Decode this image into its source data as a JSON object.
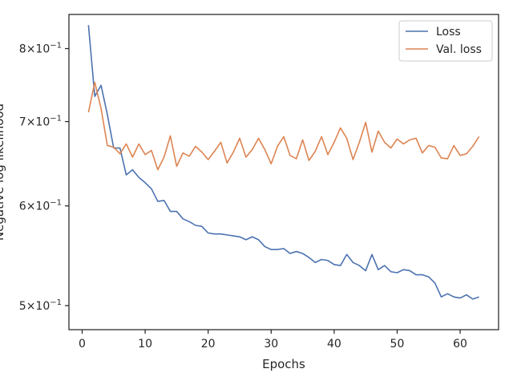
{
  "chart_data": {
    "type": "line",
    "xlabel": "Epochs",
    "ylabel": "Negative log likelihood",
    "yscale": "log",
    "xlim": [
      -2.1,
      66.1
    ],
    "ylim": [
      0.4785,
      0.8515
    ],
    "xticks": [
      0,
      10,
      20,
      30,
      40,
      50,
      60
    ],
    "xtick_labels": [
      "0",
      "10",
      "20",
      "30",
      "40",
      "50",
      "60"
    ],
    "yticks": [
      0.5,
      0.6,
      0.7,
      0.8
    ],
    "ytick_labels": [
      {
        "base": "5",
        "mid": "×10",
        "exp": "−1"
      },
      {
        "base": "6",
        "mid": "×10",
        "exp": "−1"
      },
      {
        "base": "7",
        "mid": "×10",
        "exp": "−1"
      },
      {
        "base": "8",
        "mid": "×10",
        "exp": "−1"
      }
    ],
    "grid": false,
    "legend_position": "upper right",
    "x": [
      1,
      2,
      3,
      4,
      5,
      6,
      7,
      8,
      9,
      10,
      11,
      12,
      13,
      14,
      15,
      16,
      17,
      18,
      19,
      20,
      21,
      22,
      23,
      24,
      25,
      26,
      27,
      28,
      29,
      30,
      31,
      32,
      33,
      34,
      35,
      36,
      37,
      38,
      39,
      40,
      41,
      42,
      43,
      44,
      45,
      46,
      47,
      48,
      49,
      50,
      51,
      52,
      53,
      54,
      55,
      56,
      57,
      58,
      59,
      60,
      61,
      62,
      63
    ],
    "series": [
      {
        "name": "Loss",
        "color": "#4c72b0",
        "values": [
          0.835,
          0.733,
          0.748,
          0.709,
          0.667,
          0.667,
          0.635,
          0.641,
          0.632,
          0.626,
          0.619,
          0.605,
          0.606,
          0.594,
          0.594,
          0.586,
          0.583,
          0.579,
          0.578,
          0.571,
          0.57,
          0.57,
          0.569,
          0.568,
          0.567,
          0.564,
          0.567,
          0.564,
          0.557,
          0.554,
          0.554,
          0.555,
          0.55,
          0.552,
          0.55,
          0.546,
          0.541,
          0.544,
          0.543,
          0.539,
          0.538,
          0.549,
          0.541,
          0.538,
          0.533,
          0.549,
          0.534,
          0.538,
          0.532,
          0.531,
          0.534,
          0.533,
          0.529,
          0.529,
          0.527,
          0.521,
          0.508,
          0.511,
          0.508,
          0.507,
          0.51,
          0.506,
          0.508
        ]
      },
      {
        "name": "Val. loss",
        "color": "#dd8452",
        "values": [
          0.712,
          0.752,
          0.717,
          0.67,
          0.668,
          0.66,
          0.672,
          0.656,
          0.672,
          0.659,
          0.664,
          0.641,
          0.656,
          0.682,
          0.645,
          0.661,
          0.657,
          0.669,
          0.662,
          0.653,
          0.663,
          0.674,
          0.649,
          0.662,
          0.679,
          0.656,
          0.665,
          0.679,
          0.665,
          0.648,
          0.669,
          0.681,
          0.658,
          0.654,
          0.677,
          0.652,
          0.663,
          0.681,
          0.659,
          0.674,
          0.692,
          0.679,
          0.653,
          0.674,
          0.699,
          0.662,
          0.688,
          0.674,
          0.667,
          0.678,
          0.672,
          0.677,
          0.679,
          0.661,
          0.67,
          0.668,
          0.655,
          0.654,
          0.67,
          0.658,
          0.66,
          0.669,
          0.681
        ]
      }
    ]
  }
}
